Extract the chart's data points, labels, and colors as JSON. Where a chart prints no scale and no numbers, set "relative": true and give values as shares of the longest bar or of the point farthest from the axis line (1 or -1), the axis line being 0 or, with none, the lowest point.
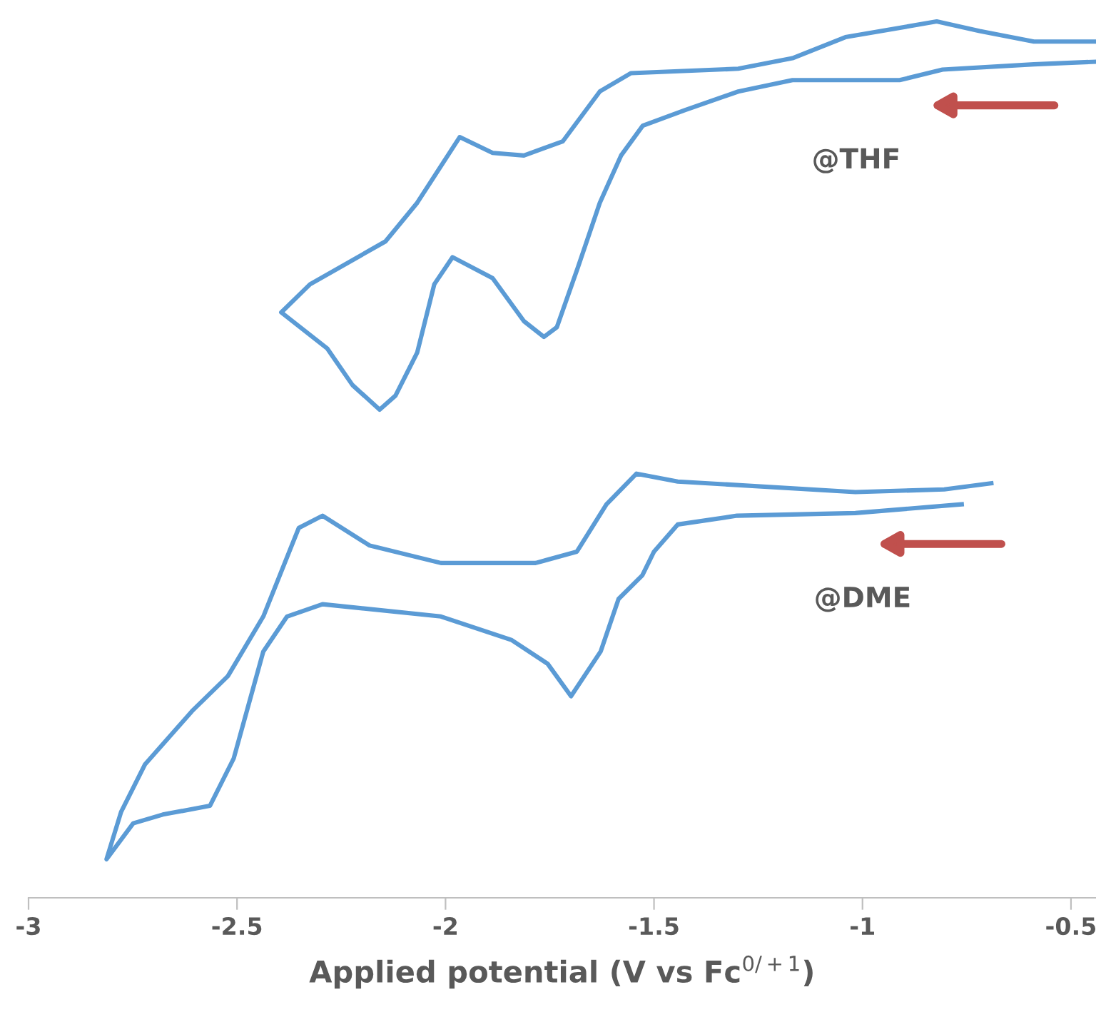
{
  "chart_data": {
    "type": "line",
    "relative": true,
    "xlabel": "Applied potential (V vs Fc$^{0/+1}$)",
    "xlim": [
      -3,
      -0.44
    ],
    "xticks": [
      -3,
      -2.5,
      -2,
      -1.5,
      -1,
      -0.5
    ],
    "tick_labels": "x",
    "grid": false,
    "legend": false,
    "marker": "none",
    "line_style": "solid",
    "series": [
      {
        "name": "@THF",
        "color": "#5b9bd5",
        "x": [
          -0.44,
          -0.589,
          -0.808,
          -0.911,
          -1.168,
          -1.298,
          -1.425,
          -1.527,
          -1.579,
          -1.63,
          -1.682,
          -1.733,
          -1.764,
          -1.812,
          -1.887,
          -1.983,
          -2.027,
          -2.068,
          -2.12,
          -2.158,
          -2.223,
          -2.284,
          -2.394,
          -2.325,
          -2.144,
          -2.068,
          -1.966,
          -1.887,
          -1.812,
          -1.719,
          -1.63,
          -1.555,
          -1.298,
          -1.168,
          -1.041,
          -0.822,
          -0.719,
          -0.589,
          -0.44
        ],
        "values": [
          0.954,
          0.951,
          0.945,
          0.933,
          0.933,
          0.92,
          0.899,
          0.881,
          0.847,
          0.793,
          0.72,
          0.651,
          0.64,
          0.658,
          0.707,
          0.731,
          0.7,
          0.622,
          0.573,
          0.557,
          0.585,
          0.627,
          0.668,
          0.7,
          0.749,
          0.793,
          0.868,
          0.85,
          0.847,
          0.863,
          0.92,
          0.941,
          0.946,
          0.958,
          0.982,
          1.0,
          0.989,
          0.977,
          0.977
        ]
      },
      {
        "name": "@DME",
        "color": "#5b9bd5",
        "x": [
          -0.762,
          -1.017,
          -1.301,
          -1.443,
          -1.5,
          -1.528,
          -1.585,
          -1.628,
          -1.699,
          -1.755,
          -1.841,
          -2.011,
          -2.295,
          -2.38,
          -2.437,
          -2.508,
          -2.565,
          -2.678,
          -2.749,
          -2.813,
          -2.778,
          -2.721,
          -2.608,
          -2.522,
          -2.437,
          -2.352,
          -2.295,
          -2.182,
          -2.011,
          -1.784,
          -1.685,
          -1.614,
          -1.542,
          -1.443,
          -1.017,
          -0.804,
          -0.691
        ],
        "values": [
          0.449,
          0.439,
          0.436,
          0.426,
          0.395,
          0.368,
          0.341,
          0.281,
          0.23,
          0.267,
          0.294,
          0.321,
          0.335,
          0.321,
          0.281,
          0.159,
          0.105,
          0.095,
          0.085,
          0.044,
          0.098,
          0.152,
          0.213,
          0.253,
          0.321,
          0.422,
          0.436,
          0.402,
          0.382,
          0.382,
          0.395,
          0.449,
          0.484,
          0.475,
          0.463,
          0.466,
          0.473
        ]
      }
    ]
  }
}
